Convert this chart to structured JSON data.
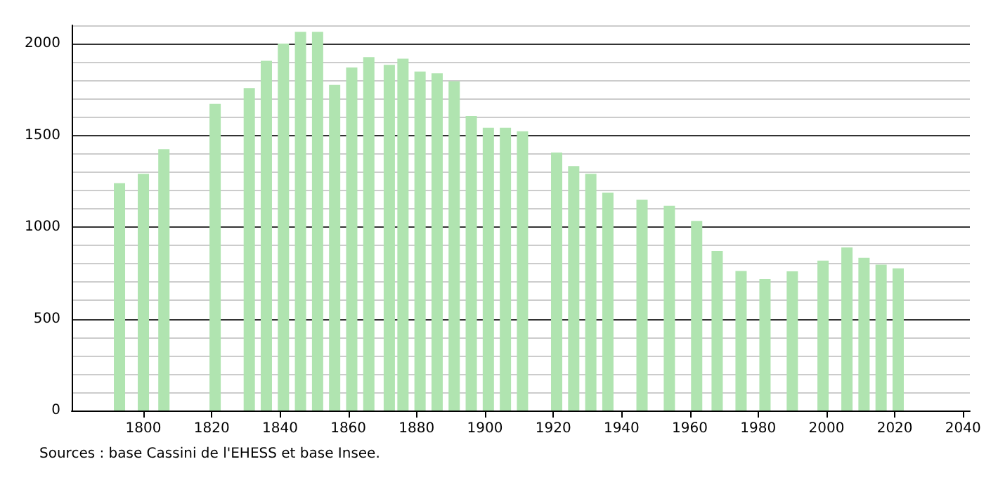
{
  "chart_data": {
    "type": "bar",
    "color": "#b0e4b0",
    "x": [
      1793,
      1800,
      1806,
      1821,
      1831,
      1836,
      1841,
      1846,
      1851,
      1856,
      1861,
      1866,
      1872,
      1876,
      1881,
      1886,
      1891,
      1896,
      1901,
      1906,
      1911,
      1921,
      1926,
      1931,
      1936,
      1946,
      1954,
      1962,
      1968,
      1975,
      1982,
      1990,
      1999,
      2006,
      2011,
      2016,
      2021
    ],
    "values": [
      1240,
      1290,
      1425,
      1672,
      1758,
      1906,
      2000,
      2065,
      2065,
      1775,
      1870,
      1927,
      1884,
      1918,
      1848,
      1838,
      1795,
      1606,
      1541,
      1541,
      1522,
      1406,
      1333,
      1290,
      1188,
      1150,
      1116,
      1034,
      870,
      761,
      717,
      759,
      817,
      889,
      833,
      795,
      775
    ],
    "xlim": [
      1779,
      2042
    ],
    "xticks": [
      1800,
      1820,
      1840,
      1860,
      1880,
      1900,
      1920,
      1940,
      1960,
      1980,
      2000,
      2020,
      2040
    ],
    "ylim": [
      0,
      2100
    ],
    "yticks": [
      0,
      {
        "value": 100,
        "label": null
      },
      {
        "value": 200,
        "label": null
      },
      {
        "value": 300,
        "label": null
      },
      {
        "value": 400,
        "label": null
      },
      500,
      {
        "value": 600,
        "label": null
      },
      {
        "value": 700,
        "label": null
      },
      {
        "value": 800,
        "label": null
      },
      {
        "value": 900,
        "label": null
      },
      1000,
      {
        "value": 1100,
        "label": null
      },
      {
        "value": 1200,
        "label": null
      },
      {
        "value": 1300,
        "label": null
      },
      {
        "value": 1400,
        "label": null
      },
      1500,
      {
        "value": 1600,
        "label": null
      },
      {
        "value": 1700,
        "label": null
      },
      {
        "value": 1800,
        "label": null
      },
      {
        "value": 1900,
        "label": null
      },
      2000,
      {
        "value": 2100,
        "label": null
      }
    ],
    "grid": "y",
    "annotations": [
      "Sources : base Cassini de l'EHESS et base Insee."
    ]
  }
}
